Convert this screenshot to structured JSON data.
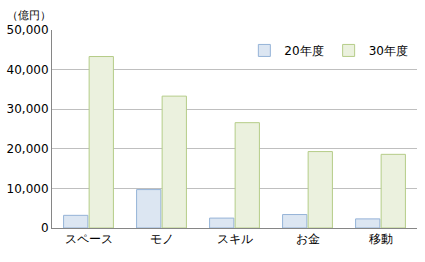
{
  "chart_data": {
    "type": "bar",
    "y_label": "（億円）",
    "categories": [
      "スペース",
      "モノ",
      "スキル",
      "お金",
      "移動"
    ],
    "series": [
      {
        "name": "20年度",
        "color": "#dce6f2",
        "values": [
          3200,
          9700,
          2500,
          3400,
          2300
        ]
      },
      {
        "name": "30年度",
        "color": "#ebf1de",
        "values": [
          43300,
          33300,
          26600,
          19300,
          18600
        ]
      }
    ],
    "ylim": [
      0,
      50000
    ],
    "yticks": [
      0,
      {
        "value": 10000,
        "label": "10,000"
      },
      {
        "value": 20000,
        "label": "20,000"
      },
      {
        "value": 30000,
        "label": "30,000"
      },
      {
        "value": 40000,
        "label": "40,000"
      },
      {
        "value": 50000,
        "label": "50,000"
      }
    ],
    "grid": true,
    "legend": "top right"
  }
}
